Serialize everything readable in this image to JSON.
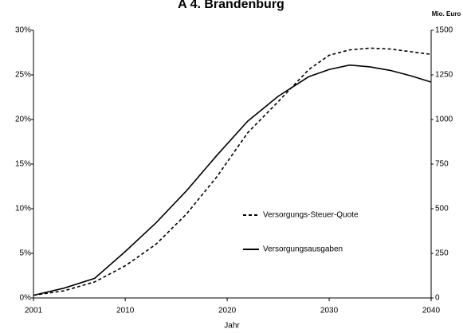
{
  "chart_data": {
    "type": "line",
    "title": "A 4. Brandenburg",
    "y2_label": "Mio. Euro",
    "x_label": "Jahr",
    "x": [
      2001,
      2004,
      2007,
      2010,
      2013,
      2016,
      2019,
      2022,
      2025,
      2028,
      2030,
      2032,
      2034,
      2036,
      2038,
      2040
    ],
    "series": [
      {
        "name": "Versorgungs-Steuer-Quote",
        "color": "#000000",
        "dash": true,
        "values": [
          0.3,
          0.8,
          1.8,
          3.6,
          6.0,
          9.4,
          13.6,
          18.5,
          22.0,
          25.6,
          27.2,
          27.8,
          28.0,
          27.9,
          27.6,
          27.3
        ]
      },
      {
        "name": "Versorgungsausgaben",
        "color": "#000000",
        "dash": false,
        "axis": "y2",
        "values": [
          15,
          55,
          110,
          260,
          420,
          600,
          800,
          990,
          1130,
          1240,
          1280,
          1305,
          1295,
          1275,
          1245,
          1210
        ]
      }
    ],
    "xlim": [
      2001,
      2040
    ],
    "xticks": [
      2001,
      2010,
      2020,
      2030,
      2040
    ],
    "ylim": [
      0,
      30
    ],
    "yticks": [
      {
        "value": 0,
        "label": "0%"
      },
      {
        "value": 5,
        "label": "5%"
      },
      {
        "value": 10,
        "label": "10%"
      },
      {
        "value": 15,
        "label": "15%"
      },
      {
        "value": 20,
        "label": "20%"
      },
      {
        "value": 25,
        "label": "25%"
      },
      {
        "value": 30,
        "label": "30%"
      }
    ],
    "y2lim": [
      0,
      1500
    ],
    "y2ticks": [
      0,
      250,
      500,
      750,
      1000,
      1250,
      1500
    ],
    "grid": false
  }
}
